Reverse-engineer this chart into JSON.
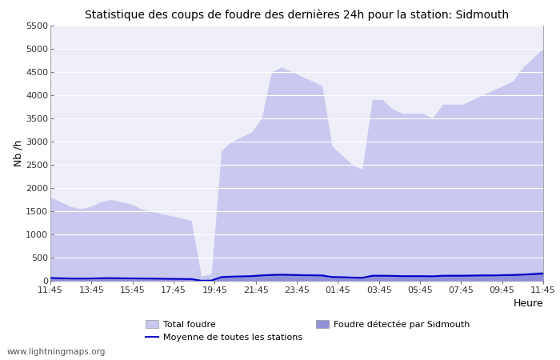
{
  "title": "Statistique des coups de foudre des dernières 24h pour la station: Sidmouth",
  "xlabel": "Heure",
  "ylabel": "Nb /h",
  "ylim": [
    0,
    5500
  ],
  "yticks": [
    0,
    500,
    1000,
    1500,
    2000,
    2500,
    3000,
    3500,
    4000,
    4500,
    5000,
    5500
  ],
  "xtick_labels": [
    "11:45",
    "13:45",
    "15:45",
    "17:45",
    "19:45",
    "21:45",
    "23:45",
    "01:45",
    "03:45",
    "05:45",
    "07:45",
    "09:45",
    "11:45"
  ],
  "background_color": "#ffffff",
  "plot_bg_color": "#eeeef8",
  "grid_color": "#ffffff",
  "total_foudre_color": "#c8c8f0",
  "foudre_detectee_color": "#9090d8",
  "moyenne_color": "#0000cc",
  "watermark": "www.lightningmaps.org",
  "total_foudre_values": [
    1800,
    1700,
    1600,
    1550,
    1600,
    1700,
    1750,
    1700,
    1650,
    1550,
    1500,
    1450,
    1400,
    1350,
    1300,
    100,
    150,
    2800,
    3000,
    3100,
    3200,
    3500,
    4500,
    4600,
    4500,
    4400,
    4300,
    4200,
    2900,
    2700,
    2500,
    2400,
    3900,
    3900,
    3700,
    3600,
    3600,
    3600,
    3500,
    3800,
    3800,
    3800,
    3900,
    4000,
    4100,
    4200,
    4300,
    4600,
    4800,
    5000
  ],
  "foudre_detectee_values": [
    80,
    70,
    65,
    60,
    65,
    70,
    75,
    70,
    68,
    65,
    60,
    55,
    50,
    45,
    40,
    5,
    8,
    100,
    110,
    120,
    130,
    150,
    160,
    165,
    160,
    155,
    150,
    145,
    105,
    100,
    90,
    85,
    140,
    140,
    135,
    130,
    130,
    130,
    125,
    140,
    140,
    140,
    145,
    150,
    150,
    155,
    160,
    170,
    185,
    200
  ],
  "moyenne_values": [
    60,
    55,
    50,
    48,
    50,
    55,
    58,
    55,
    52,
    50,
    48,
    45,
    42,
    40,
    38,
    3,
    5,
    80,
    90,
    95,
    100,
    115,
    125,
    130,
    125,
    120,
    118,
    115,
    82,
    78,
    70,
    65,
    108,
    108,
    105,
    100,
    100,
    100,
    96,
    108,
    108,
    108,
    112,
    115,
    115,
    120,
    123,
    132,
    143,
    155
  ],
  "n_points": 50
}
